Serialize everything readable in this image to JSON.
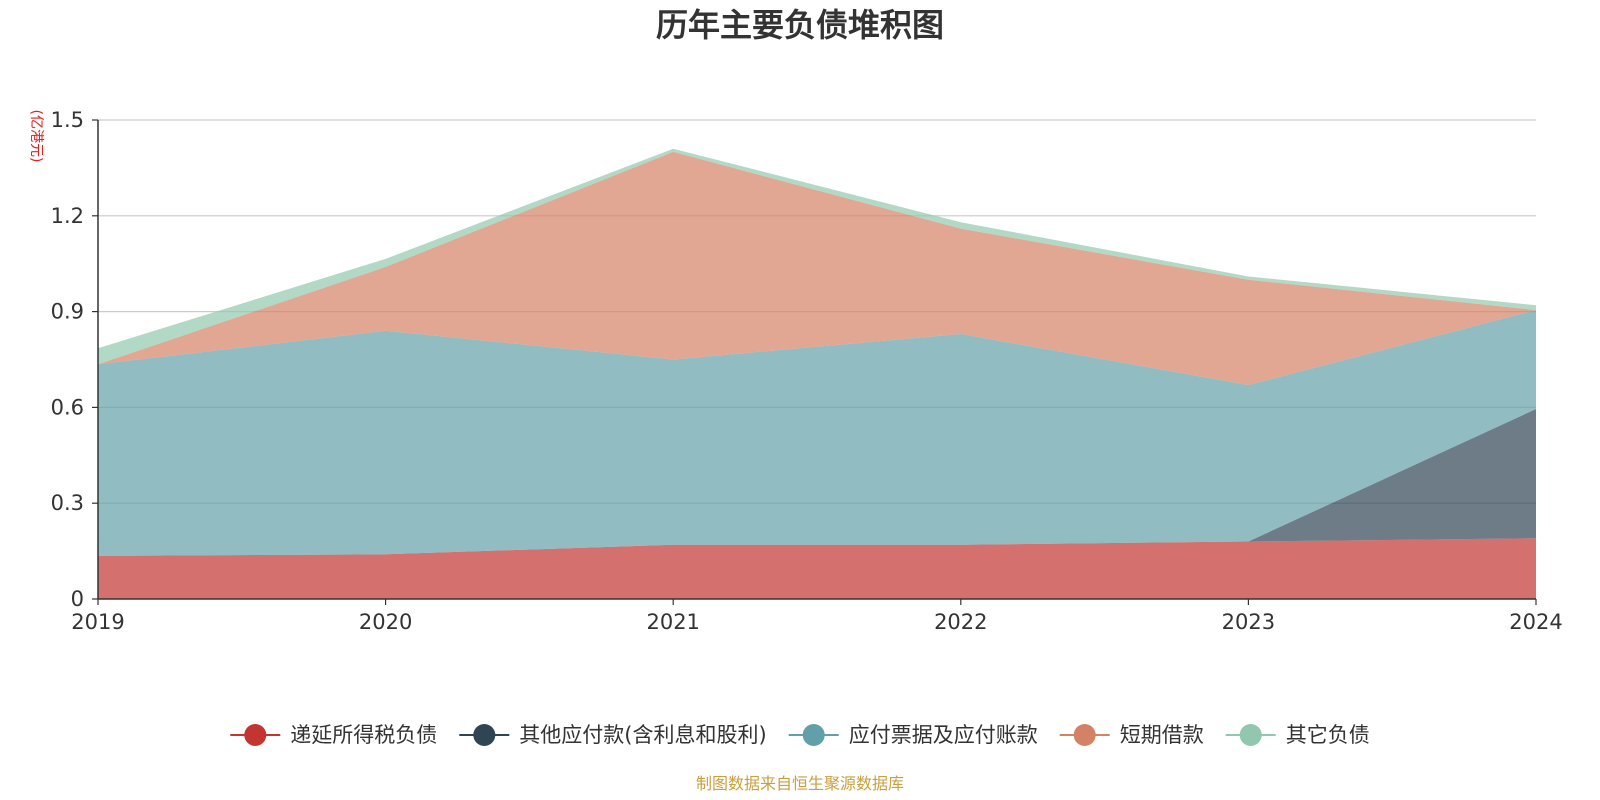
{
  "chart_data": {
    "type": "area",
    "stacked": true,
    "title": "历年主要负债堆积图",
    "unit_label": "(亿港元)",
    "x": [
      "2019",
      "2020",
      "2021",
      "2022",
      "2023",
      "2024"
    ],
    "ylim": [
      0,
      1.5
    ],
    "yticks": [
      "0",
      "0.3",
      "0.6",
      "0.9",
      "1.2",
      "1.5"
    ],
    "ytick_values": [
      0,
      0.3,
      0.6,
      0.9,
      1.2,
      1.5
    ],
    "grid": true,
    "legend_position": "bottom",
    "series": [
      {
        "name": "递延所得税负债",
        "color": "#c23531",
        "values": [
          0.135,
          0.14,
          0.17,
          0.17,
          0.18,
          0.19
        ]
      },
      {
        "name": "其他应付款(含利息和股利)",
        "color": "#2f4554",
        "values": [
          0,
          0,
          0,
          0,
          0,
          0.405
        ]
      },
      {
        "name": "应付票据及应付账款",
        "color": "#61a0a8",
        "values": [
          0.6,
          0.7,
          0.58,
          0.66,
          0.49,
          0.31
        ]
      },
      {
        "name": "短期借款",
        "color": "#d48265",
        "values": [
          0,
          0.2,
          0.65,
          0.33,
          0.33,
          0
        ]
      },
      {
        "name": "其它负债",
        "color": "#91c7ae",
        "values": [
          0.05,
          0.025,
          0.01,
          0.02,
          0.01,
          0.015
        ]
      }
    ]
  },
  "footer": {
    "source": "制图数据来自恒生聚源数据库"
  }
}
